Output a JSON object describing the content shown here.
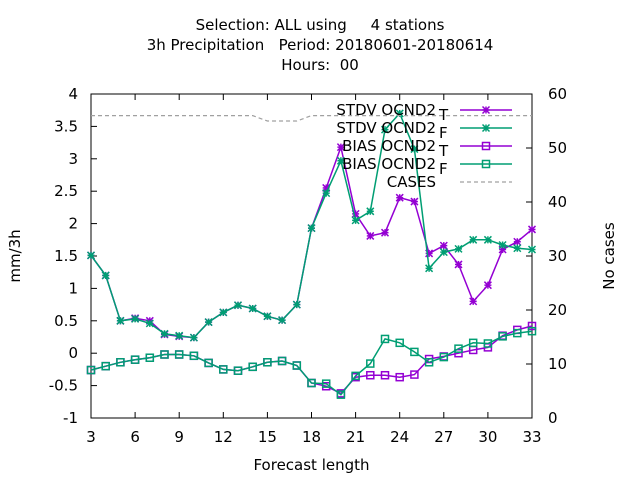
{
  "title": {
    "line1": "Selection: ALL using     4 stations",
    "line2": "3h Precipitation   Period: 20180601-20180614",
    "line3": "Hours:  00"
  },
  "chart_data": {
    "type": "line",
    "xlabel": "Forecast length",
    "ylabel": "mm/3h",
    "y2label": "No cases",
    "xlim": [
      3,
      33
    ],
    "ylim": [
      -1,
      4
    ],
    "y2lim": [
      0,
      60
    ],
    "xticks": [
      3,
      6,
      9,
      12,
      15,
      18,
      21,
      24,
      27,
      30,
      33
    ],
    "yticks": [
      -1,
      -0.5,
      0,
      0.5,
      1,
      1.5,
      2,
      2.5,
      3,
      3.5,
      4
    ],
    "y2ticks": [
      0,
      10,
      20,
      30,
      40,
      50,
      60
    ],
    "grid": false,
    "legend_position": "top-right",
    "x": [
      3,
      4,
      5,
      6,
      7,
      8,
      9,
      10,
      11,
      12,
      13,
      14,
      15,
      16,
      17,
      18,
      19,
      20,
      21,
      22,
      23,
      24,
      25,
      26,
      27,
      28,
      29,
      30,
      31,
      32,
      33
    ],
    "series": [
      {
        "name": "STDV OCND2",
        "subscript": "T",
        "color": "#9400d3",
        "marker": "x",
        "values": [
          1.51,
          1.2,
          0.5,
          0.54,
          0.5,
          0.29,
          0.26,
          0.24,
          0.48,
          0.63,
          0.74,
          0.69,
          0.57,
          0.51,
          0.75,
          1.93,
          2.55,
          3.18,
          2.15,
          1.81,
          1.86,
          2.4,
          2.34,
          1.54,
          1.66,
          1.37,
          0.8,
          1.05,
          1.6,
          1.72,
          1.91
        ]
      },
      {
        "name": "STDV OCND2",
        "subscript": "F",
        "color": "#009e73",
        "marker": "x",
        "values": [
          1.51,
          1.2,
          0.5,
          0.53,
          0.46,
          0.3,
          0.27,
          0.24,
          0.48,
          0.63,
          0.74,
          0.69,
          0.57,
          0.51,
          0.75,
          1.93,
          2.47,
          2.97,
          2.05,
          2.19,
          3.45,
          3.7,
          3.15,
          1.31,
          1.56,
          1.61,
          1.75,
          1.75,
          1.67,
          1.62,
          1.6
        ]
      },
      {
        "name": "BIAS OCND2",
        "subscript": "T",
        "color": "#9400d3",
        "marker": "square",
        "values": [
          -0.26,
          -0.2,
          -0.14,
          -0.1,
          -0.07,
          -0.02,
          -0.02,
          -0.04,
          -0.15,
          -0.25,
          -0.27,
          -0.21,
          -0.14,
          -0.12,
          -0.19,
          -0.46,
          -0.51,
          -0.62,
          -0.37,
          -0.34,
          -0.34,
          -0.37,
          -0.33,
          -0.09,
          -0.05,
          0.0,
          0.05,
          0.09,
          0.27,
          0.36,
          0.42
        ]
      },
      {
        "name": "BIAS OCND2",
        "subscript": "F",
        "color": "#009e73",
        "marker": "square",
        "values": [
          -0.26,
          -0.2,
          -0.14,
          -0.1,
          -0.07,
          -0.02,
          -0.02,
          -0.04,
          -0.15,
          -0.25,
          -0.27,
          -0.21,
          -0.14,
          -0.12,
          -0.19,
          -0.46,
          -0.47,
          -0.64,
          -0.35,
          -0.16,
          0.22,
          0.16,
          0.02,
          -0.14,
          -0.06,
          0.07,
          0.16,
          0.15,
          0.26,
          0.31,
          0.34
        ]
      },
      {
        "name": "CASES",
        "axis": "y2",
        "color": "#a0a0a0",
        "style": "dashed",
        "values": [
          56,
          56,
          56,
          56,
          56,
          56,
          56,
          56,
          56,
          56,
          56,
          56,
          55,
          55,
          55,
          56,
          56,
          56,
          56,
          56,
          56,
          56,
          56,
          56,
          56,
          56,
          56,
          56,
          56,
          56,
          56
        ]
      }
    ]
  }
}
